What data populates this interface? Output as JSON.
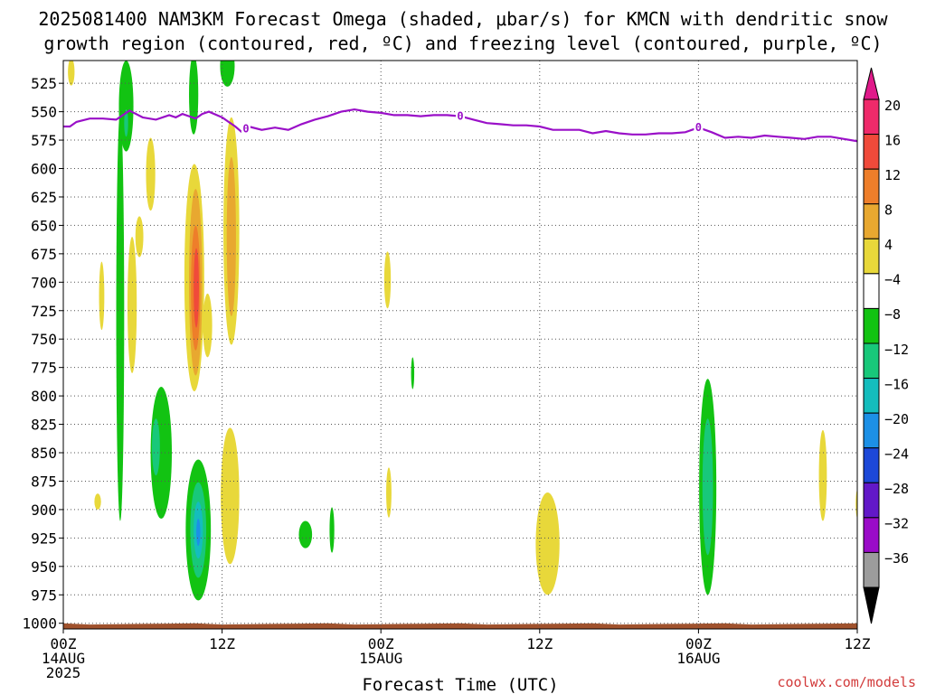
{
  "title": {
    "line1": "2025081400 NAM3KM Forecast Omega (shaded, μbar/s) for KMCN with dendritic snow",
    "line2": "growth region (contoured, red, ºC) and freezing level (contoured, purple, ºC)"
  },
  "credit": "coolwx.com/models",
  "chart_data": {
    "type": "heatmap",
    "xlabel": "Forecast Time (UTC)",
    "ylabel": "",
    "x_range_hours": [
      0,
      60
    ],
    "y_range_mb": [
      1005,
      505
    ],
    "y_ticks": [
      525,
      550,
      575,
      600,
      625,
      650,
      675,
      700,
      725,
      750,
      775,
      800,
      825,
      850,
      875,
      900,
      925,
      950,
      975,
      1000
    ],
    "x_ticks": [
      {
        "hour": 0,
        "lines": [
          "00Z",
          "14AUG",
          "2025"
        ]
      },
      {
        "hour": 12,
        "lines": [
          "12Z"
        ]
      },
      {
        "hour": 24,
        "lines": [
          "00Z",
          "15AUG"
        ]
      },
      {
        "hour": 36,
        "lines": [
          "12Z"
        ]
      },
      {
        "hour": 48,
        "lines": [
          "00Z",
          "16AUG"
        ]
      },
      {
        "hour": 60,
        "lines": [
          "12Z"
        ]
      }
    ],
    "grid": true,
    "colorbar": {
      "levels": [
        "20",
        "16",
        "12",
        "8",
        "4",
        "−4",
        "−8",
        "−12",
        "−16",
        "−20",
        "−24",
        "−28",
        "−32",
        "−36"
      ],
      "colors": [
        "#ef2a6a",
        "#f04a3a",
        "#ee7e2a",
        "#e8a830",
        "#e8d83a",
        "#ffffff",
        "#12c312",
        "#18c87a",
        "#14bdbd",
        "#1c90e6",
        "#1c48d8",
        "#6218c8",
        "#9a0cc8",
        "#9c9c9c"
      ],
      "top_arrow_color": "#e01a8a",
      "bottom_arrow_color": "#000000"
    },
    "freezing_level": {
      "label": "0",
      "color": "#9a10c8",
      "points": [
        [
          0,
          563
        ],
        [
          0.5,
          563
        ],
        [
          1,
          559
        ],
        [
          2,
          556
        ],
        [
          3,
          556
        ],
        [
          4,
          557
        ],
        [
          5,
          549
        ],
        [
          6,
          555
        ],
        [
          7,
          557
        ],
        [
          8,
          553
        ],
        [
          8.5,
          555
        ],
        [
          9,
          552
        ],
        [
          10,
          556
        ],
        [
          10.5,
          552
        ],
        [
          11,
          550
        ],
        [
          12,
          555
        ],
        [
          13,
          563
        ],
        [
          13.5,
          568
        ],
        [
          14,
          563
        ],
        [
          15,
          566
        ],
        [
          16,
          564
        ],
        [
          17,
          566
        ],
        [
          18,
          561
        ],
        [
          19,
          557
        ],
        [
          20,
          554
        ],
        [
          21,
          550
        ],
        [
          22,
          548
        ],
        [
          23,
          550
        ],
        [
          24,
          551
        ],
        [
          25,
          553
        ],
        [
          26,
          553
        ],
        [
          27,
          554
        ],
        [
          28,
          553
        ],
        [
          29,
          553
        ],
        [
          30,
          554
        ],
        [
          31,
          557
        ],
        [
          32,
          560
        ],
        [
          33,
          561
        ],
        [
          34,
          562
        ],
        [
          35,
          562
        ],
        [
          36,
          563
        ],
        [
          37,
          566
        ],
        [
          38,
          566
        ],
        [
          39,
          566
        ],
        [
          40,
          569
        ],
        [
          41,
          567
        ],
        [
          42,
          569
        ],
        [
          43,
          570
        ],
        [
          44,
          570
        ],
        [
          45,
          569
        ],
        [
          46,
          569
        ],
        [
          47,
          568
        ],
        [
          48,
          564
        ],
        [
          49,
          568
        ],
        [
          50,
          573
        ],
        [
          51,
          572
        ],
        [
          52,
          573
        ],
        [
          53,
          571
        ],
        [
          54,
          572
        ],
        [
          55,
          573
        ],
        [
          56,
          574
        ],
        [
          57,
          572
        ],
        [
          58,
          572
        ],
        [
          59,
          574
        ],
        [
          60,
          576
        ]
      ],
      "label_hours": [
        13.8,
        30,
        48
      ]
    },
    "ground": {
      "color": "#a0522d",
      "top_mb": 1000
    },
    "shaded_features": [
      {
        "value": 6,
        "color": "#e8d83a",
        "shape": "ellipse",
        "x": 0.6,
        "y": 515,
        "rx": 0.25,
        "ry": 12
      },
      {
        "value": 6,
        "color": "#e8d83a",
        "shape": "ellipse",
        "x": 2.9,
        "y": 712,
        "rx": 0.2,
        "ry": 30
      },
      {
        "value": 6,
        "color": "#e8d83a",
        "shape": "ellipse",
        "x": 2.6,
        "y": 893,
        "rx": 0.25,
        "ry": 7
      },
      {
        "value": -6,
        "color": "#12c312",
        "shape": "ellipse",
        "x": 4.3,
        "y": 730,
        "rx": 0.3,
        "ry": 180
      },
      {
        "value": -6,
        "color": "#12c312",
        "shape": "ellipse",
        "x": 4.75,
        "y": 545,
        "rx": 0.55,
        "ry": 40
      },
      {
        "value": -10,
        "color": "#18c87a",
        "shape": "ellipse",
        "x": 4.75,
        "y": 560,
        "rx": 0.15,
        "ry": 12
      },
      {
        "value": 6,
        "color": "#e8d83a",
        "shape": "ellipse",
        "x": 5.2,
        "y": 720,
        "rx": 0.35,
        "ry": 60
      },
      {
        "value": 6,
        "color": "#e8d83a",
        "shape": "ellipse",
        "x": 5.75,
        "y": 660,
        "rx": 0.3,
        "ry": 18
      },
      {
        "value": 6,
        "color": "#e8d83a",
        "shape": "ellipse",
        "x": 6.6,
        "y": 605,
        "rx": 0.35,
        "ry": 32
      },
      {
        "value": -6,
        "color": "#12c312",
        "shape": "ellipse",
        "x": 7.4,
        "y": 850,
        "rx": 0.8,
        "ry": 58
      },
      {
        "value": -10,
        "color": "#18c87a",
        "shape": "ellipse",
        "x": 7.0,
        "y": 845,
        "rx": 0.3,
        "ry": 25
      },
      {
        "value": 6,
        "color": "#e8d83a",
        "shape": "ellipse",
        "x": 9.9,
        "y": 696,
        "rx": 0.75,
        "ry": 100
      },
      {
        "value": 10,
        "color": "#e8a830",
        "shape": "ellipse",
        "x": 10.0,
        "y": 700,
        "rx": 0.5,
        "ry": 82
      },
      {
        "value": 14,
        "color": "#ee7e2a",
        "shape": "ellipse",
        "x": 10.0,
        "y": 705,
        "rx": 0.35,
        "ry": 55
      },
      {
        "value": 18,
        "color": "#f04a3a",
        "shape": "ellipse",
        "x": 10.05,
        "y": 705,
        "rx": 0.2,
        "ry": 35
      },
      {
        "value": 6,
        "color": "#e8d83a",
        "shape": "ellipse",
        "x": 10.9,
        "y": 738,
        "rx": 0.35,
        "ry": 28
      },
      {
        "value": -6,
        "color": "#12c312",
        "shape": "ellipse",
        "x": 9.85,
        "y": 535,
        "rx": 0.35,
        "ry": 35
      },
      {
        "value": -6,
        "color": "#12c312",
        "shape": "ellipse",
        "x": 10.2,
        "y": 918,
        "rx": 0.95,
        "ry": 62
      },
      {
        "value": -10,
        "color": "#18c87a",
        "shape": "ellipse",
        "x": 10.2,
        "y": 918,
        "rx": 0.6,
        "ry": 42
      },
      {
        "value": -14,
        "color": "#14bdbd",
        "shape": "ellipse",
        "x": 10.2,
        "y": 918,
        "rx": 0.35,
        "ry": 25
      },
      {
        "value": -18,
        "color": "#1c90e6",
        "shape": "ellipse",
        "x": 10.2,
        "y": 920,
        "rx": 0.15,
        "ry": 12
      },
      {
        "value": 6,
        "color": "#e8d83a",
        "shape": "ellipse",
        "x": 12.7,
        "y": 655,
        "rx": 0.6,
        "ry": 100
      },
      {
        "value": 10,
        "color": "#e8a830",
        "shape": "ellipse",
        "x": 12.7,
        "y": 660,
        "rx": 0.35,
        "ry": 70
      },
      {
        "value": 6,
        "color": "#e8d83a",
        "shape": "ellipse",
        "x": 12.6,
        "y": 888,
        "rx": 0.7,
        "ry": 60
      },
      {
        "value": -6,
        "color": "#12c312",
        "shape": "ellipse",
        "x": 12.4,
        "y": 510,
        "rx": 0.55,
        "ry": 18
      },
      {
        "value": -6,
        "color": "#12c312",
        "shape": "ellipse",
        "x": 18.3,
        "y": 922,
        "rx": 0.5,
        "ry": 12
      },
      {
        "value": -6,
        "color": "#12c312",
        "shape": "ellipse",
        "x": 20.3,
        "y": 918,
        "rx": 0.18,
        "ry": 20
      },
      {
        "value": 6,
        "color": "#e8d83a",
        "shape": "ellipse",
        "x": 24.5,
        "y": 698,
        "rx": 0.25,
        "ry": 25
      },
      {
        "value": 6,
        "color": "#e8d83a",
        "shape": "ellipse",
        "x": 24.6,
        "y": 885,
        "rx": 0.2,
        "ry": 22
      },
      {
        "value": -6,
        "color": "#12c312",
        "shape": "ellipse",
        "x": 26.4,
        "y": 780,
        "rx": 0.12,
        "ry": 14
      },
      {
        "value": 6,
        "color": "#e8d83a",
        "shape": "ellipse",
        "x": 36.6,
        "y": 930,
        "rx": 0.9,
        "ry": 45
      },
      {
        "value": -6,
        "color": "#12c312",
        "shape": "ellipse",
        "x": 48.7,
        "y": 880,
        "rx": 0.65,
        "ry": 95
      },
      {
        "value": -10,
        "color": "#18c87a",
        "shape": "ellipse",
        "x": 48.7,
        "y": 880,
        "rx": 0.4,
        "ry": 60
      },
      {
        "value": 6,
        "color": "#e8d83a",
        "shape": "ellipse",
        "x": 57.4,
        "y": 870,
        "rx": 0.3,
        "ry": 40
      },
      {
        "value": 6,
        "color": "#e8d83a",
        "shape": "ellipse",
        "x": 60.0,
        "y": 895,
        "rx": 0.12,
        "ry": 12
      }
    ]
  }
}
